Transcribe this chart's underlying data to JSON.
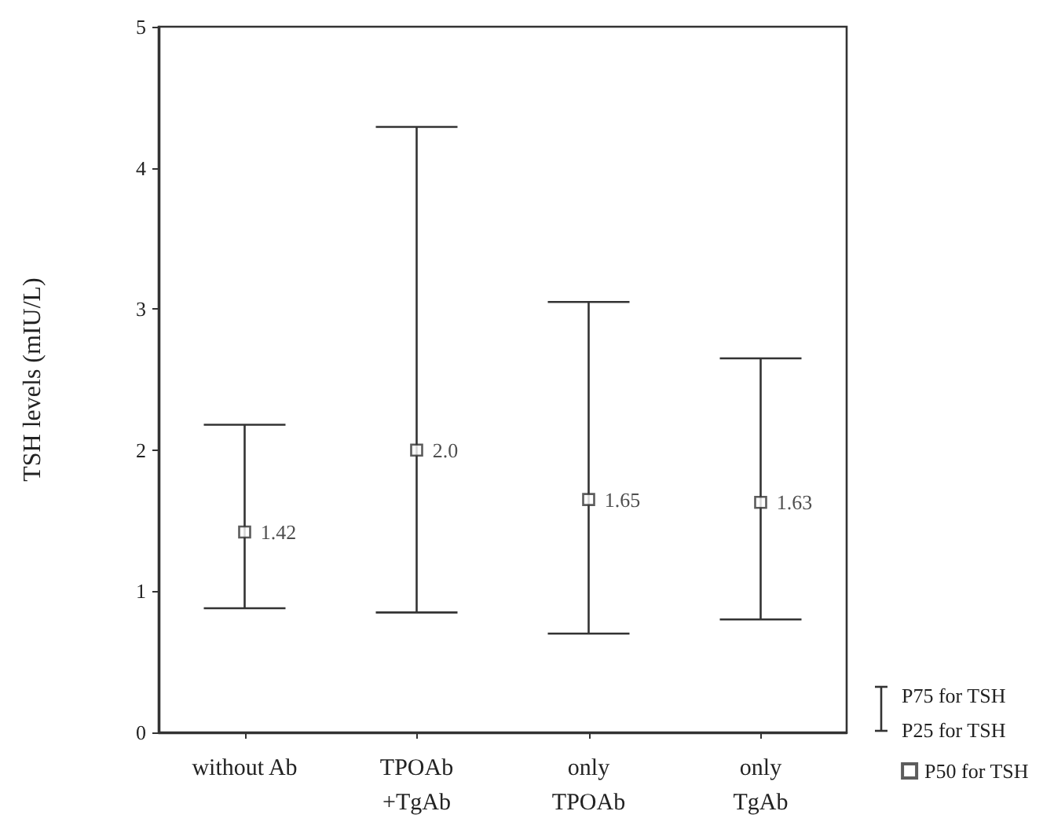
{
  "chart_data": {
    "type": "scatter",
    "ylabel": "TSH levels (mIU/L)",
    "categories": [
      "without Ab",
      "TPOAb\n+TgAb",
      "only\nTPOAb",
      "only\nTgAb"
    ],
    "series": [
      {
        "name": "P50 for TSH",
        "color": "#333333",
        "values": [
          1.42,
          2.0,
          1.65,
          1.63
        ],
        "errors": [
          [
            0.88,
            2.18
          ],
          [
            0.85,
            4.29
          ],
          [
            0.7,
            3.05
          ],
          [
            0.8,
            2.65
          ]
        ],
        "value_labels": [
          "1.42",
          "2.0",
          "1.65",
          "1.63"
        ]
      }
    ],
    "ylim": [
      0,
      5
    ],
    "yticks": [
      0,
      1,
      2,
      3,
      4,
      5
    ],
    "grid": false,
    "marker": "square",
    "legend": "bottom right",
    "annotations": [
      "P75 for TSH",
      "P25 for TSH"
    ]
  }
}
